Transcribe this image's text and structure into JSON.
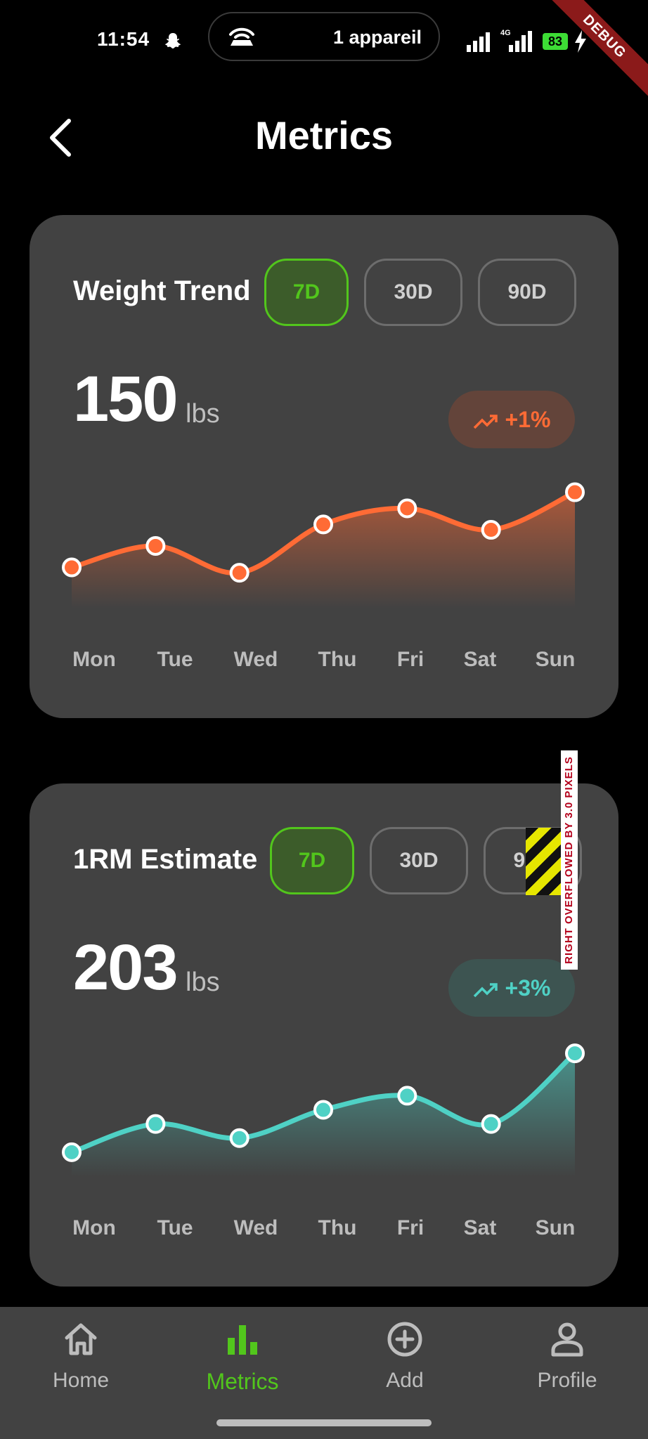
{
  "status_bar": {
    "time": "11:54",
    "hotspot_text": "1 appareil",
    "battery": "83",
    "debug_label": "DEBUG"
  },
  "header": {
    "title": "Metrics",
    "back_icon": "chevron-left-icon"
  },
  "cards": [
    {
      "title": "Weight Trend",
      "ranges": [
        "7D",
        "30D",
        "90D"
      ],
      "active_range": "7D",
      "value": "150",
      "unit": "lbs",
      "change": "+1%",
      "accent": "#ff6b35"
    },
    {
      "title": "1RM Estimate",
      "ranges": [
        "7D",
        "30D",
        "90D"
      ],
      "active_range": "7D",
      "value": "203",
      "unit": "lbs",
      "change": "+3%",
      "accent": "#4fd1c5"
    }
  ],
  "chart_data": [
    {
      "type": "area",
      "categories": [
        "Mon",
        "Tue",
        "Wed",
        "Thu",
        "Fri",
        "Sat",
        "Sun"
      ],
      "series": [
        {
          "values": [
            149.2,
            149.6,
            149.1,
            150.0,
            150.3,
            149.9,
            150.6
          ]
        }
      ],
      "ylim": [
        148.5,
        151.0
      ]
    },
    {
      "type": "area",
      "categories": [
        "Mon",
        "Tue",
        "Wed",
        "Thu",
        "Fri",
        "Sat",
        "Sun"
      ],
      "series": [
        {
          "values": [
            198,
            200,
            199,
            201,
            202,
            200,
            205
          ]
        }
      ],
      "ylim": [
        196.5,
        206.0
      ]
    }
  ],
  "overflow_warning": "RIGHT OVERFLOWED BY 3.0 PIXELS",
  "bottom_nav": {
    "items": [
      {
        "label": "Home",
        "icon": "home-icon"
      },
      {
        "label": "Metrics",
        "icon": "bar-chart-icon"
      },
      {
        "label": "Add",
        "icon": "plus-circle-icon"
      },
      {
        "label": "Profile",
        "icon": "person-icon"
      }
    ],
    "active": "Metrics",
    "active_color": "#52c61c"
  }
}
